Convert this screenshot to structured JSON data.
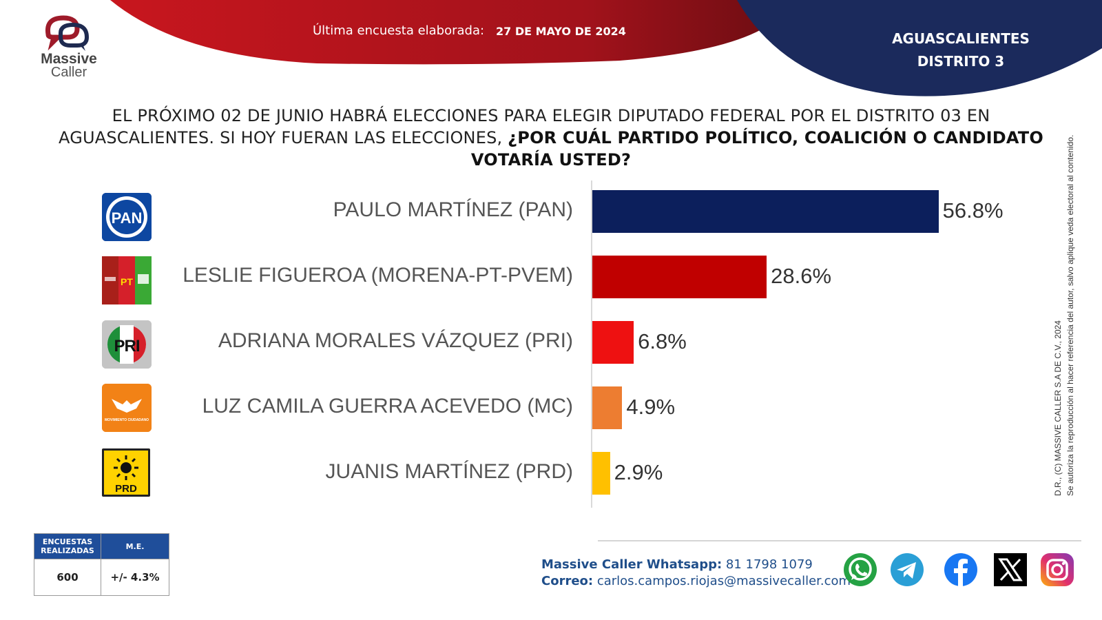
{
  "brand": {
    "line1": "Massive",
    "line2": "Caller"
  },
  "header": {
    "date_label": "Última encuesta elaborada:",
    "date_value": "27 DE MAYO DE 2024",
    "region_line1": "AGUASCALIENTES",
    "region_line2": "DISTRITO 3"
  },
  "question": {
    "normal": "EL PRÓXIMO 02 DE JUNIO HABRÁ ELECCIONES PARA ELEGIR DIPUTADO FEDERAL POR EL  DISTRITO 03 EN AGUASCALIENTES.  SI HOY FUERAN LAS ELECCIONES, ",
    "bold": "¿POR CUÁL PARTIDO POLÍTICO, COALICIÓN O CANDIDATO VOTARÍA USTED?"
  },
  "chart_data": {
    "type": "bar",
    "orientation": "horizontal",
    "categories": [
      "PAULO MARTÍNEZ (PAN)",
      "LESLIE FIGUEROA (MORENA-PT-PVEM)",
      "ADRIANA MORALES VÁZQUEZ (PRI)",
      "LUZ CAMILA GUERRA ACEVEDO  (MC)",
      "JUANIS MARTÍNEZ (PRD)"
    ],
    "values": [
      56.8,
      28.6,
      6.8,
      4.9,
      2.9
    ],
    "value_labels": [
      "56.8%",
      "28.6%",
      "6.8%",
      "4.9%",
      "2.9%"
    ],
    "colors": [
      "#0c1f5c",
      "#c00000",
      "#ee1111",
      "#ed7d31",
      "#ffc000"
    ],
    "party_logos": [
      "pan-logo",
      "morena-pt-pvem-logo",
      "pri-logo",
      "mc-logo",
      "prd-logo"
    ],
    "party_logo_text": [
      "PAN",
      "PT",
      "PRI",
      "MOVIMIENTO CIUDADANO",
      "PRD"
    ],
    "xlim": [
      0,
      100
    ],
    "grid": false,
    "legend": "none"
  },
  "survey_table": {
    "header_count": "ENCUESTAS REALIZADAS",
    "header_me": "M.E.",
    "count": "600",
    "me": "+/- 4.3%"
  },
  "contact": {
    "whatsapp_label": "Massive Caller Whatsapp:",
    "whatsapp_value": " 81 1798 1079",
    "email_label": "Correo:",
    "email_value": " carlos.campos.riojas@massivecaller.com"
  },
  "copyright": {
    "line1": "D.R., (C) MASSIVE CALLER S.A DE C.V., 2024",
    "line2": "Se autoriza la reproducción al hacer referencia del autor, salvo aplique veda electoral al contenido."
  },
  "social_icons": [
    "whatsapp-icon",
    "telegram-icon",
    "facebook-icon",
    "x-icon",
    "instagram-icon"
  ],
  "theme": {
    "red": "#b3141e",
    "navy": "#1b2a5c",
    "table_blue": "#1f4e9a"
  }
}
